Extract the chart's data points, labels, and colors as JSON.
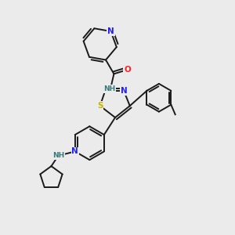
{
  "bg_color": "#ebebeb",
  "bond_color": "#1a1a1a",
  "bond_width": 1.4,
  "atom_colors": {
    "N": "#2020ff",
    "O": "#ff2020",
    "S": "#c8b400",
    "H": "#3a7a7a",
    "C": "#1a1a1a"
  },
  "font_size_atom": 7.5,
  "font_size_h": 6.5
}
